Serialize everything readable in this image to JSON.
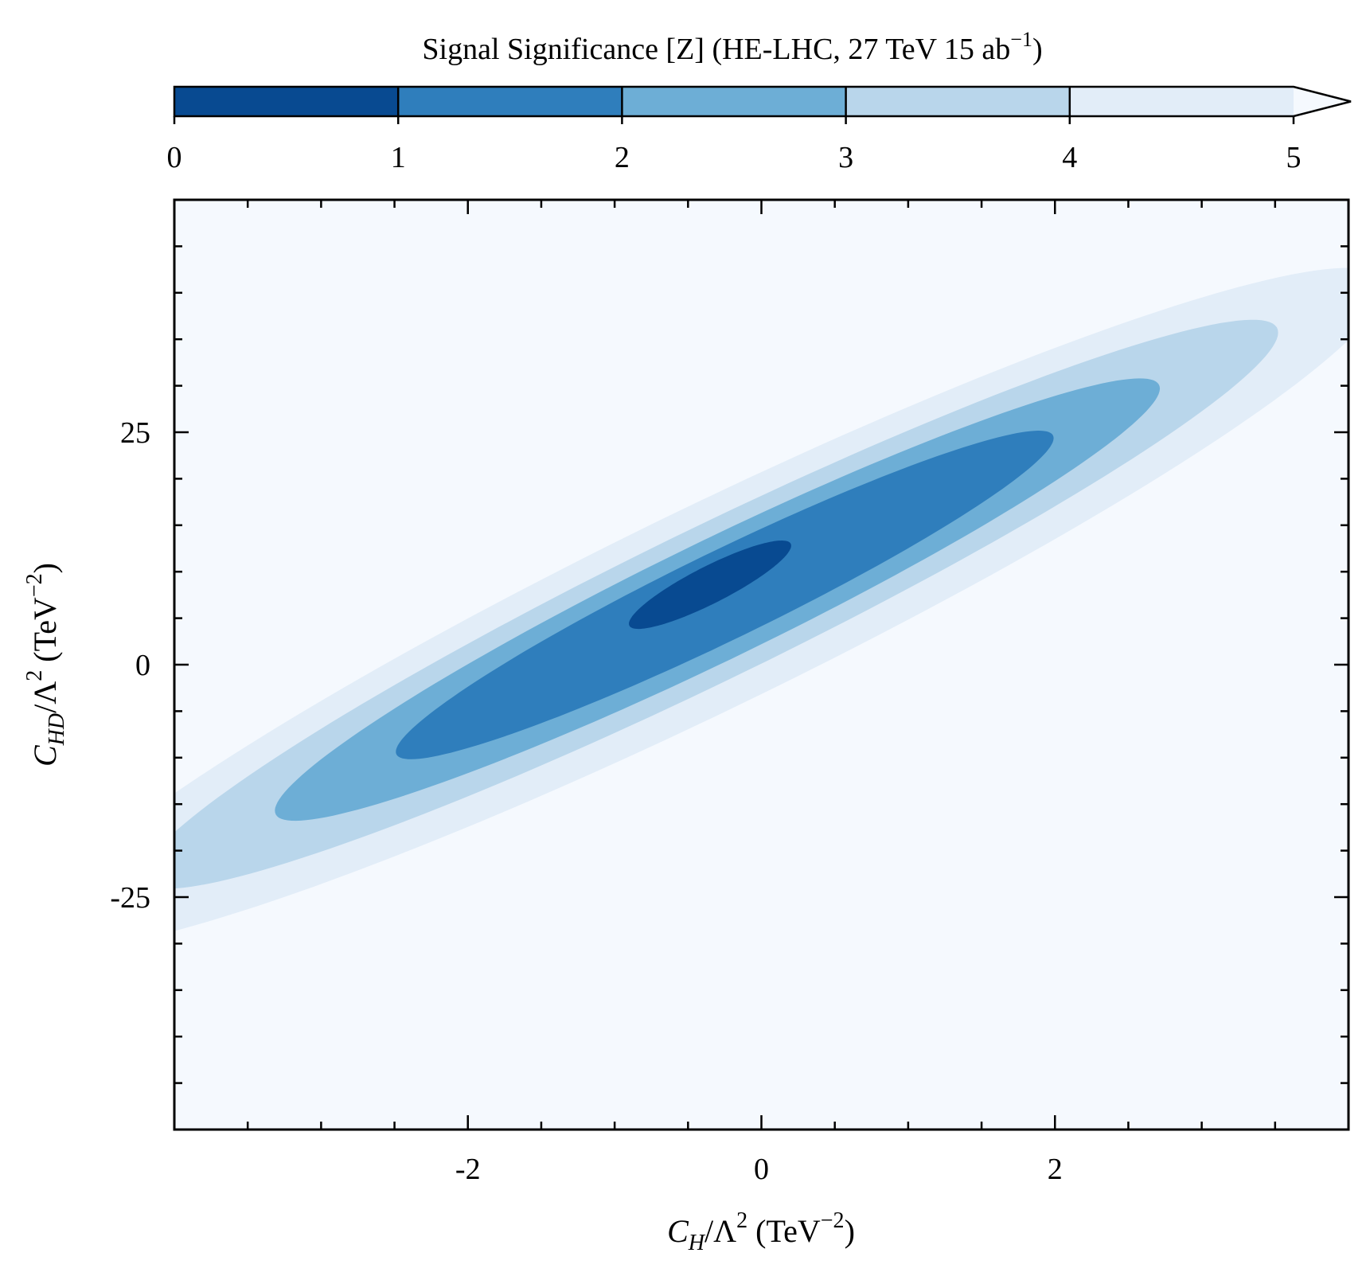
{
  "chart_data": {
    "type": "contour",
    "title": "Signal Significance [Z] (HE-LHC, 27 TeV 15 ab⁻¹)",
    "colorbar": {
      "title": "Signal Significance [Z] (HE-LHC, 27 TeV 15 ab",
      "title_sup": "−1",
      "title_end": ")",
      "levels": [
        0,
        1,
        2,
        3,
        4,
        5
      ],
      "tick_labels": [
        "0",
        "1",
        "2",
        "3",
        "4",
        "5"
      ],
      "colors": [
        "#084a91",
        "#2f7ebc",
        "#6daed6",
        "#b9d6eb",
        "#e2edf8"
      ],
      "extend": "max",
      "location": "top"
    },
    "background_color": "#f5f9fe",
    "xlabel": "C_H / Λ² (TeV⁻²)",
    "ylabel": "C_HD / Λ² (TeV⁻²)",
    "x_axis": {
      "range": [
        -4.0,
        4.0
      ],
      "major_ticks": [
        -2,
        0,
        2
      ],
      "tick_labels": [
        "-2",
        "0",
        "2"
      ],
      "minor_step": 0.5
    },
    "y_axis": {
      "range": [
        -50,
        50
      ],
      "major_ticks": [
        -25,
        0,
        25
      ],
      "tick_labels": [
        "-25",
        "0",
        "25"
      ],
      "minor_step": 5
    },
    "contours": [
      {
        "level": "4-5",
        "center": [
          -0.37,
          6.0
        ],
        "semi_major": [
          4.59,
          35.8
        ],
        "semi_minor": [
          0.52,
          -8.0
        ]
      },
      {
        "level": "3-4",
        "center": [
          -0.35,
          6.5
        ],
        "semi_major": [
          3.85,
          30.0
        ],
        "semi_minor": [
          0.4,
          -6.0
        ]
      },
      {
        "level": "2-3",
        "center": [
          -0.3,
          7.0
        ],
        "semi_major": [
          3.0,
          23.3
        ],
        "semi_minor": [
          0.3,
          -4.8
        ]
      },
      {
        "level": "1-2",
        "center": [
          -0.25,
          7.5
        ],
        "semi_major": [
          2.23,
          17.3
        ],
        "semi_minor": [
          0.22,
          -3.6
        ]
      },
      {
        "level": "0-1",
        "center": [
          -0.35,
          8.6
        ],
        "semi_major": [
          0.55,
          4.4
        ],
        "semi_minor": [
          0.055,
          -1.8
        ]
      }
    ]
  },
  "labels": {
    "x_main": "C",
    "x_sub": "H",
    "x_rest": "/Λ",
    "x_sup": "2",
    "x_unit": " (TeV",
    "x_unit_sup": "−2",
    "x_unit_end": ")",
    "y_main": "C",
    "y_sub": "HD",
    "y_rest": "/Λ",
    "y_sup": "2",
    "y_unit": " (TeV",
    "y_unit_sup": "−2",
    "y_unit_end": ")"
  }
}
